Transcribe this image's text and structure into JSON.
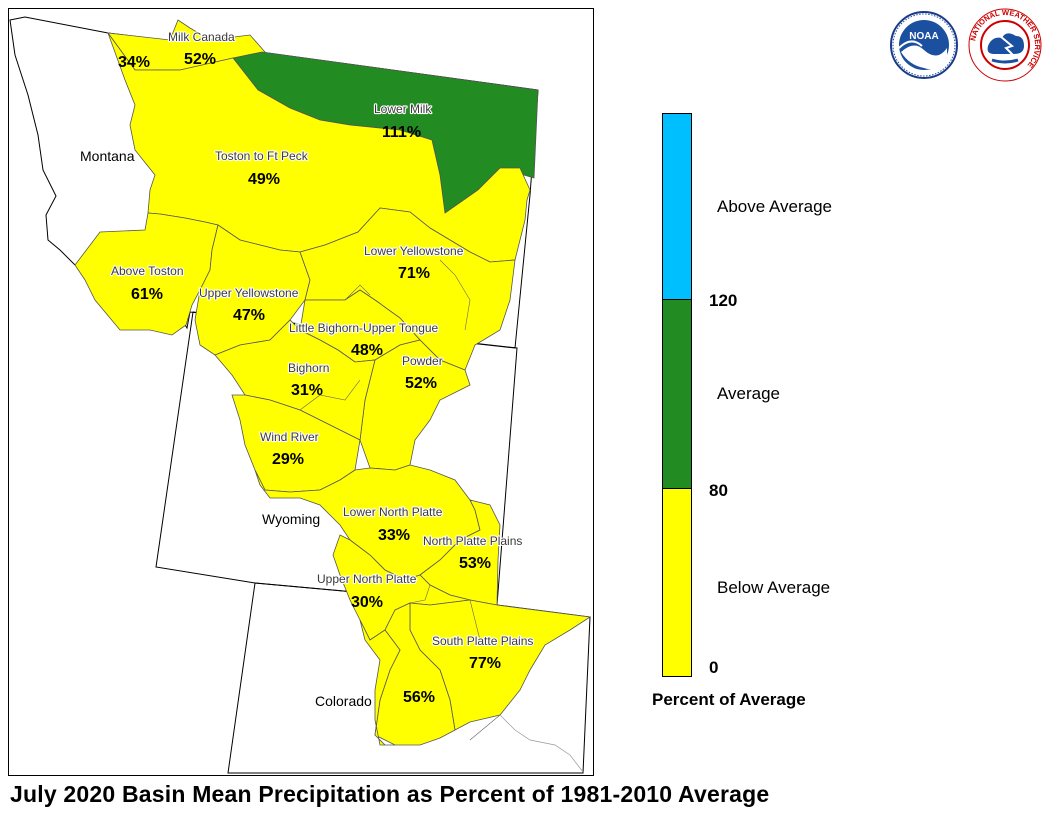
{
  "title": "July 2020 Basin Mean Precipitation as Percent of 1981-2010 Average",
  "colors": {
    "below_average": "#ffff00",
    "average": "#228b22",
    "above_average": "#00bfff",
    "boundary": "#000000"
  },
  "states": [
    "Montana",
    "Wyoming",
    "Colorado"
  ],
  "basins": [
    {
      "name": "Milk Canada",
      "value": "52%",
      "category": "below_average"
    },
    {
      "name": "",
      "value": "34%",
      "category": "below_average"
    },
    {
      "name": "Lower Milk",
      "value": "111%",
      "category": "average"
    },
    {
      "name": "Toston to Ft Peck",
      "value": "49%",
      "category": "below_average"
    },
    {
      "name": "Above Toston",
      "value": "61%",
      "category": "below_average"
    },
    {
      "name": "Lower Yellowstone",
      "value": "71%",
      "category": "below_average"
    },
    {
      "name": "Upper Yellowstone",
      "value": "47%",
      "category": "below_average"
    },
    {
      "name": "Little Bighorn-Upper Tongue",
      "value": "48%",
      "category": "below_average"
    },
    {
      "name": "Bighorn",
      "value": "31%",
      "category": "below_average"
    },
    {
      "name": "Powder",
      "value": "52%",
      "category": "below_average"
    },
    {
      "name": "Wind River",
      "value": "29%",
      "category": "below_average"
    },
    {
      "name": "Lower North Platte",
      "value": "33%",
      "category": "below_average"
    },
    {
      "name": "North Platte Plains",
      "value": "53%",
      "category": "below_average"
    },
    {
      "name": "Upper North Platte",
      "value": "30%",
      "category": "below_average"
    },
    {
      "name": "South Platte Plains",
      "value": "77%",
      "category": "below_average"
    },
    {
      "name": "",
      "value": "56%",
      "category": "below_average"
    }
  ],
  "legend": {
    "title": "Percent of Average",
    "categories": [
      {
        "label": "Above Average",
        "color": "#00bfff"
      },
      {
        "label": "Average",
        "color": "#228b22"
      },
      {
        "label": "Below Average",
        "color": "#ffff00"
      }
    ],
    "ticks": [
      "120",
      "80",
      "0"
    ]
  },
  "logos": [
    {
      "name": "noaa-logo",
      "text": "NOAA"
    },
    {
      "name": "nws-logo",
      "text": "NATIONAL WEATHER SERVICE"
    }
  ]
}
